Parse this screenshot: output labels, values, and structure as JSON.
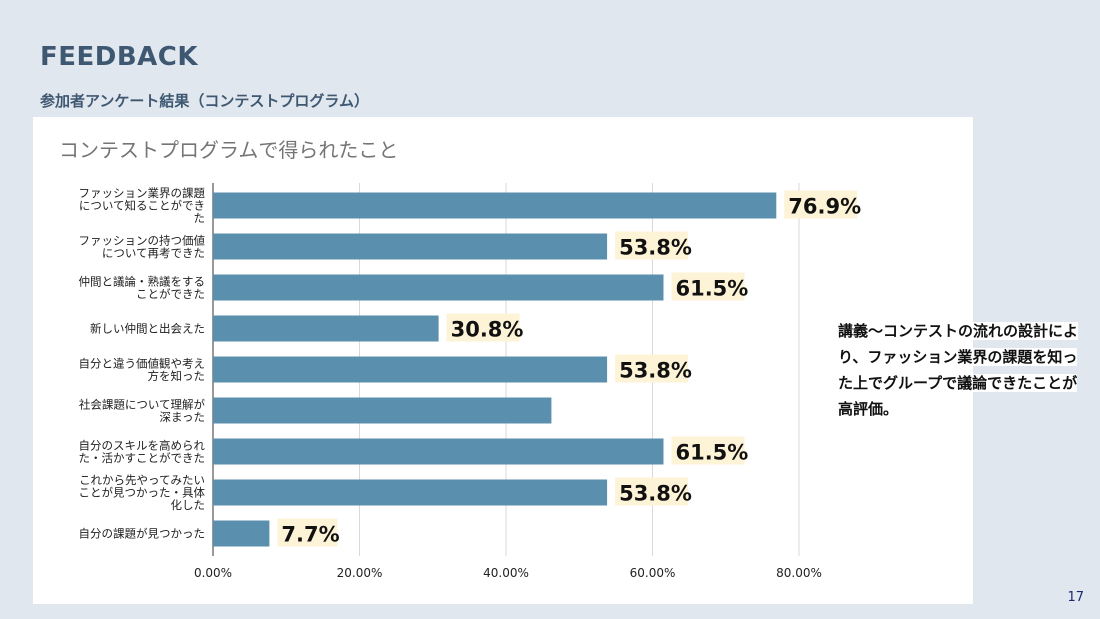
{
  "slide": {
    "title": "FEEDBACK",
    "subtitle": "参加者アンケート結果（コンテストプログラム）",
    "note": "講義～コンテストの流れの設計により、ファッション業界の課題を知った上でグループで議論できたことが高評価。",
    "page_number": "17"
  },
  "chart_data": {
    "type": "bar",
    "orientation": "horizontal",
    "title": "コンテストプログラムで得られたこと",
    "categories": [
      "ファッション業界の課題について知ることができた",
      "ファッションの持つ価値について再考できた",
      "仲間と議論・熟議をすることができた",
      "新しい仲間と出会えた",
      "自分と違う価値観や考え方を知った",
      "社会課題について理解が深まった",
      "自分のスキルを高められた・活かすことができた",
      "これから先やってみたいことが見つかった・具体化した",
      "自分の課題が見つかった"
    ],
    "category_lines": [
      [
        "ファッション業界の課題",
        "について知ることができ",
        "た"
      ],
      [
        "ファッションの持つ価値",
        "について再考できた"
      ],
      [
        "仲間と議論・熟議をする",
        "ことができた"
      ],
      [
        "新しい仲間と出会えた"
      ],
      [
        "自分と違う価値観や考え",
        "方を知った"
      ],
      [
        "社会課題について理解が",
        "深まった"
      ],
      [
        "自分のスキルを高められ",
        "た・活かすことができた"
      ],
      [
        "これから先やってみたい",
        "ことが見つかった・具体",
        "化した"
      ],
      [
        "自分の課題が見つかった"
      ]
    ],
    "values": [
      76.9,
      53.8,
      61.5,
      30.8,
      53.8,
      46.2,
      61.5,
      53.8,
      7.7
    ],
    "data_labels": [
      "76.9%",
      "53.8%",
      "61.5%",
      "30.8%",
      "53.8%",
      "",
      "61.5%",
      "53.8%",
      "7.7%"
    ],
    "x_ticks": [
      0,
      20,
      40,
      60,
      80
    ],
    "x_tick_labels": [
      "0.00%",
      "20.00%",
      "40.00%",
      "60.00%",
      "80.00%"
    ],
    "xlim": [
      0,
      80
    ],
    "grid": true,
    "colors": {
      "bar": "#5b8fae",
      "label_bg": "#fdf3d6",
      "grid": "#d9d9d9"
    }
  }
}
